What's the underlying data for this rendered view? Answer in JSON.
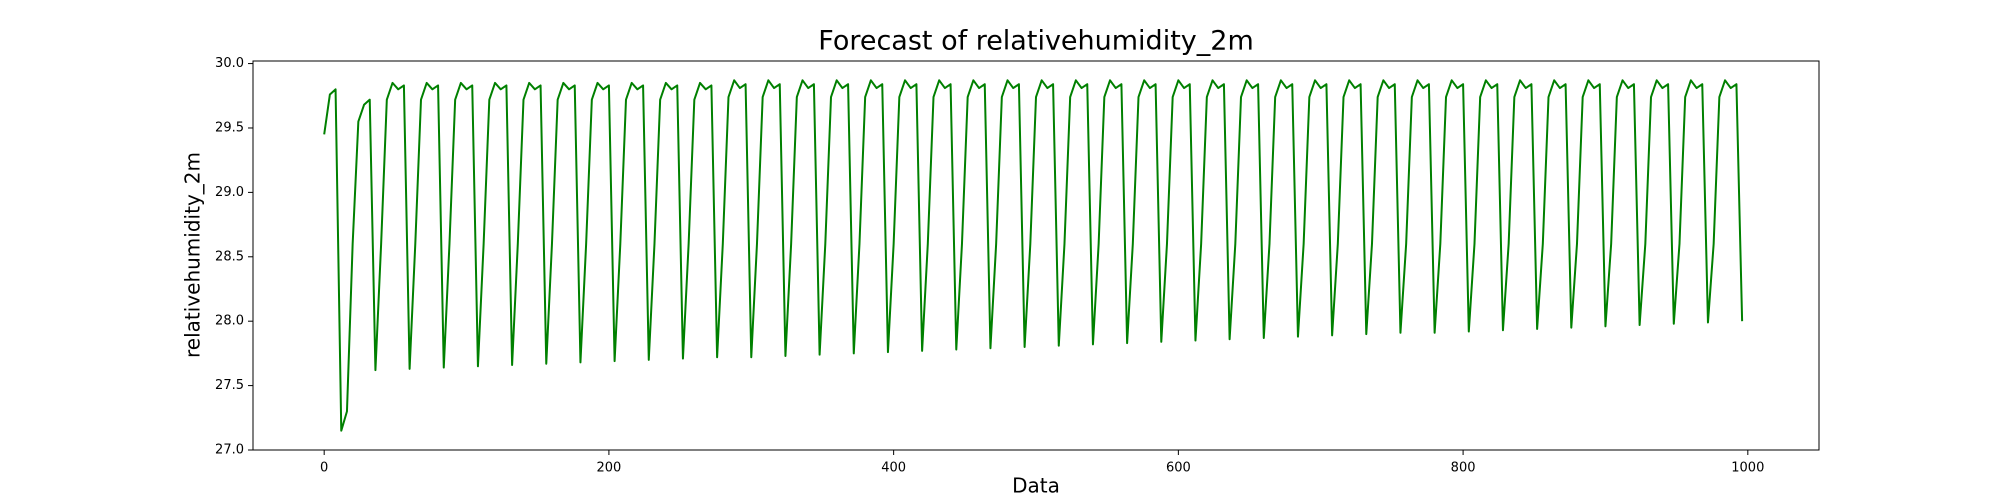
{
  "chart_data": {
    "type": "line",
    "title": "Forecast of relativehumidity_2m",
    "x_label": "Data",
    "y_label": "relativehumidity_2m",
    "color": "#008000",
    "xlim": [
      -50,
      1050
    ],
    "xticks": [
      0,
      200,
      400,
      600,
      800,
      1000
    ],
    "ylim": [
      27.0,
      30.02
    ],
    "yticks": [
      {
        "value": 27.0,
        "label": "27.0"
      },
      27.5,
      {
        "value": 28.0,
        "label": "28.0"
      },
      28.5,
      {
        "value": 29.0,
        "label": "29.0"
      },
      29.5,
      {
        "value": 30.0,
        "label": "30.0"
      }
    ],
    "x": [
      0,
      4,
      8,
      12,
      16,
      20,
      24,
      28,
      32,
      36,
      40,
      44,
      48,
      52,
      56,
      60,
      64,
      68,
      72,
      76,
      80,
      84,
      88,
      92,
      96,
      100,
      104,
      108,
      112,
      116,
      120,
      124,
      128,
      132,
      136,
      140,
      144,
      148,
      152,
      156,
      160,
      164,
      168,
      172,
      176,
      180,
      184,
      188,
      192,
      196,
      200,
      204,
      208,
      212,
      216,
      220,
      224,
      228,
      232,
      236,
      240,
      244,
      248,
      252,
      256,
      260,
      264,
      268,
      272,
      276,
      280,
      284,
      288,
      292,
      296,
      300,
      304,
      308,
      312,
      316,
      320,
      324,
      328,
      332,
      336,
      340,
      344,
      348,
      352,
      356,
      360,
      364,
      368,
      372,
      376,
      380,
      384,
      388,
      392,
      396,
      400,
      404,
      408,
      412,
      416,
      420,
      424,
      428,
      432,
      436,
      440,
      444,
      448,
      452,
      456,
      460,
      464,
      468,
      472,
      476,
      480,
      484,
      488,
      492,
      496,
      500,
      504,
      508,
      512,
      516,
      520,
      524,
      528,
      532,
      536,
      540,
      544,
      548,
      552,
      556,
      560,
      564,
      568,
      572,
      576,
      580,
      584,
      588,
      592,
      596,
      600,
      604,
      608,
      612,
      616,
      620,
      624,
      628,
      632,
      636,
      640,
      644,
      648,
      652,
      656,
      660,
      664,
      668,
      672,
      676,
      680,
      684,
      688,
      692,
      696,
      700,
      704,
      708,
      712,
      716,
      720,
      724,
      728,
      732,
      736,
      740,
      744,
      748,
      752,
      756,
      760,
      764,
      768,
      772,
      776,
      780,
      784,
      788,
      792,
      796,
      800,
      804,
      808,
      812,
      816,
      820,
      824,
      828,
      832,
      836,
      840,
      844,
      848,
      852,
      856,
      860,
      864,
      868,
      872,
      876,
      880,
      884,
      888,
      892,
      896,
      900,
      904,
      908,
      912,
      916,
      920,
      924,
      928,
      932,
      936,
      940,
      944,
      948,
      952,
      956,
      960,
      964,
      968,
      972,
      976,
      980,
      984,
      988,
      992,
      996
    ],
    "values": [
      29.45,
      29.76,
      29.8,
      27.15,
      27.3,
      28.6,
      29.55,
      29.68,
      29.72,
      27.62,
      28.6,
      29.72,
      29.85,
      29.8,
      29.83,
      27.63,
      28.6,
      29.72,
      29.85,
      29.8,
      29.83,
      27.64,
      28.6,
      29.72,
      29.85,
      29.8,
      29.83,
      27.65,
      28.6,
      29.72,
      29.85,
      29.8,
      29.83,
      27.66,
      28.6,
      29.72,
      29.85,
      29.8,
      29.83,
      27.67,
      28.6,
      29.72,
      29.85,
      29.8,
      29.83,
      27.68,
      28.6,
      29.72,
      29.85,
      29.8,
      29.83,
      27.69,
      28.6,
      29.72,
      29.85,
      29.8,
      29.83,
      27.7,
      28.6,
      29.72,
      29.85,
      29.8,
      29.83,
      27.71,
      28.6,
      29.72,
      29.85,
      29.8,
      29.83,
      27.72,
      28.6,
      29.74,
      29.87,
      29.81,
      29.84,
      27.72,
      28.6,
      29.74,
      29.87,
      29.81,
      29.84,
      27.73,
      28.6,
      29.74,
      29.87,
      29.81,
      29.84,
      27.74,
      28.6,
      29.74,
      29.87,
      29.81,
      29.84,
      27.75,
      28.6,
      29.74,
      29.87,
      29.81,
      29.84,
      27.76,
      28.6,
      29.74,
      29.87,
      29.81,
      29.84,
      27.77,
      28.6,
      29.74,
      29.87,
      29.81,
      29.84,
      27.78,
      28.6,
      29.74,
      29.87,
      29.81,
      29.84,
      27.79,
      28.6,
      29.74,
      29.87,
      29.81,
      29.84,
      27.8,
      28.6,
      29.74,
      29.87,
      29.81,
      29.84,
      27.81,
      28.6,
      29.74,
      29.87,
      29.81,
      29.84,
      27.82,
      28.6,
      29.74,
      29.87,
      29.81,
      29.84,
      27.83,
      28.6,
      29.74,
      29.87,
      29.81,
      29.84,
      27.84,
      28.6,
      29.74,
      29.87,
      29.81,
      29.84,
      27.85,
      28.6,
      29.74,
      29.87,
      29.81,
      29.84,
      27.86,
      28.6,
      29.74,
      29.87,
      29.81,
      29.84,
      27.87,
      28.6,
      29.74,
      29.87,
      29.81,
      29.84,
      27.88,
      28.6,
      29.74,
      29.87,
      29.81,
      29.84,
      27.89,
      28.6,
      29.74,
      29.87,
      29.81,
      29.84,
      27.9,
      28.6,
      29.74,
      29.87,
      29.81,
      29.84,
      27.91,
      28.6,
      29.74,
      29.87,
      29.81,
      29.84,
      27.91,
      28.6,
      29.74,
      29.87,
      29.81,
      29.84,
      27.92,
      28.6,
      29.74,
      29.87,
      29.81,
      29.84,
      27.93,
      28.6,
      29.74,
      29.87,
      29.81,
      29.84,
      27.94,
      28.6,
      29.74,
      29.87,
      29.81,
      29.84,
      27.95,
      28.6,
      29.74,
      29.87,
      29.81,
      29.84,
      27.96,
      28.6,
      29.74,
      29.87,
      29.81,
      29.84,
      27.97,
      28.6,
      29.74,
      29.87,
      29.81,
      29.84,
      27.98,
      28.6,
      29.74,
      29.87,
      29.81,
      29.84,
      27.99,
      28.6,
      29.74,
      29.87,
      29.81,
      29.84,
      28.0
    ]
  }
}
